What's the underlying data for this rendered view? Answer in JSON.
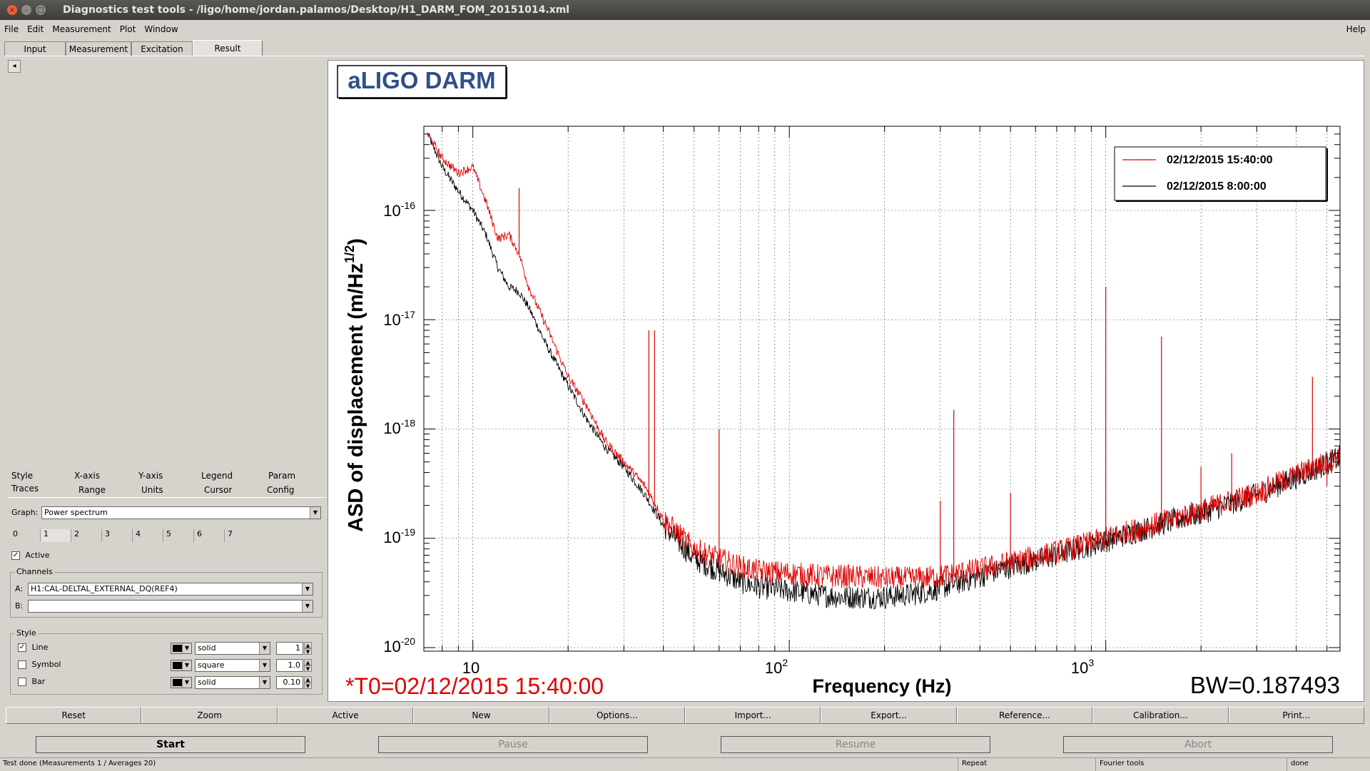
{
  "window": {
    "title": "Diagnostics test tools - /ligo/home/jordan.palamos/Desktop/H1_DARM_FOM_20151014.xml",
    "buttons": {
      "close": "×",
      "minimize": "–",
      "maximize": "□"
    }
  },
  "menu": {
    "file": "File",
    "edit": "Edit",
    "measurement": "Measurement",
    "plot": "Plot",
    "window": "Window",
    "help": "Help"
  },
  "top_tabs": [
    "Input",
    "Measurement",
    "Excitation",
    "Result"
  ],
  "left_arrow": "◂",
  "options": {
    "tabs_row1": [
      "Style",
      "X-axis",
      "Y-axis",
      "Legend",
      "Param"
    ],
    "tabs_row2": [
      "Traces",
      "Range",
      "Units",
      "Cursor",
      "Config"
    ],
    "graph_label": "Graph:",
    "graph_value": "Power spectrum",
    "trace_tabs": [
      "0",
      "1",
      "2",
      "3",
      "4",
      "5",
      "6",
      "7"
    ],
    "active_label": "Active",
    "channels_label": "Channels",
    "channel_a_label": "A:",
    "channel_a_value": "H1:CAL-DELTAL_EXTERNAL_DQ(REF4)",
    "channel_b_label": "B:",
    "channel_b_value": "",
    "style_label": "Style",
    "style_rows": [
      {
        "label": "Line",
        "checked": true,
        "type": "solid",
        "size": "1"
      },
      {
        "label": "Symbol",
        "checked": false,
        "type": "square",
        "size": "1.0"
      },
      {
        "label": "Bar",
        "checked": false,
        "type": "solid",
        "size": "0.10"
      }
    ]
  },
  "plot": {
    "title": "aLIGO DARM",
    "t0": "*T0=02/12/2015 15:40:00",
    "bw": "BW=0.187493",
    "xlabel": "Frequency (Hz)",
    "ylabel": "ASD of displacement (m/Hz",
    "ylabel_sup": "1/2",
    "ylabel_end": ")",
    "legend": [
      {
        "name": "02/12/2015 15:40:00",
        "color": "#dd0000"
      },
      {
        "name": "02/12/2015 8:00:00",
        "color": "#000000"
      }
    ],
    "xtick_labels": [
      {
        "base": "10",
        "exp": ""
      },
      {
        "base": "10",
        "exp": "2"
      },
      {
        "base": "10",
        "exp": "3"
      }
    ],
    "ytick_labels": [
      {
        "base": "10",
        "exp": "-16"
      },
      {
        "base": "10",
        "exp": "-17"
      },
      {
        "base": "10",
        "exp": "-18"
      },
      {
        "base": "10",
        "exp": "-19"
      },
      {
        "base": "10",
        "exp": "-20"
      }
    ]
  },
  "chart_data": {
    "type": "line",
    "title": "aLIGO DARM",
    "xlabel": "Frequency (Hz)",
    "ylabel": "ASD of displacement (m/Hz^1/2)",
    "xscale": "log",
    "yscale": "log",
    "xlim": [
      7,
      5500
    ],
    "ylim": [
      1e-20,
      6e-16
    ],
    "grid": true,
    "legend_position": "top-right",
    "series": [
      {
        "name": "02/12/2015 15:40:00",
        "color": "#dd0000",
        "points": [
          [
            7.2,
            5e-16
          ],
          [
            8,
            3e-16
          ],
          [
            9,
            2.2e-16
          ],
          [
            10,
            2.5e-16
          ],
          [
            11,
            1.2e-16
          ],
          [
            12,
            5.5e-17
          ],
          [
            13,
            6e-17
          ],
          [
            14,
            4e-17
          ],
          [
            15,
            2e-17
          ],
          [
            17,
            9e-18
          ],
          [
            20,
            3e-18
          ],
          [
            23,
            1.6e-18
          ],
          [
            26,
            8e-19
          ],
          [
            30,
            5e-19
          ],
          [
            35,
            3e-19
          ],
          [
            40,
            1.5e-19
          ],
          [
            50,
            8e-20
          ],
          [
            60,
            6.5e-20
          ],
          [
            70,
            5.5e-20
          ],
          [
            80,
            5e-20
          ],
          [
            100,
            4.8e-20
          ],
          [
            130,
            4.5e-20
          ],
          [
            150,
            4.5e-20
          ],
          [
            200,
            4.3e-20
          ],
          [
            250,
            4.3e-20
          ],
          [
            300,
            4.5e-20
          ],
          [
            400,
            5.2e-20
          ],
          [
            500,
            6e-20
          ],
          [
            700,
            7.5e-20
          ],
          [
            1000,
            1e-19
          ],
          [
            1500,
            1.4e-19
          ],
          [
            2000,
            1.8e-19
          ],
          [
            3000,
            2.6e-19
          ],
          [
            4000,
            3.8e-19
          ],
          [
            5000,
            5e-19
          ],
          [
            5500,
            5.8e-19
          ]
        ],
        "peaks": [
          [
            10,
            2.5e-16
          ],
          [
            14,
            1.6e-16
          ],
          [
            36,
            8e-18
          ],
          [
            37.5,
            8e-18
          ],
          [
            60,
            1e-18
          ],
          [
            120,
            4e-20
          ],
          [
            180,
            4e-20
          ],
          [
            300,
            2.2e-19
          ],
          [
            331,
            1.5e-18
          ],
          [
            500,
            2.6e-19
          ],
          [
            1000,
            2e-17
          ],
          [
            1500,
            7e-18
          ],
          [
            2000,
            4.5e-19
          ],
          [
            2500,
            6e-19
          ],
          [
            3600,
            3.3e-19
          ],
          [
            4500,
            3e-18
          ],
          [
            5000,
            3e-19
          ]
        ]
      },
      {
        "name": "02/12/2015 8:00:00",
        "color": "#000000",
        "points": [
          [
            7.2,
            5e-16
          ],
          [
            8,
            2.5e-16
          ],
          [
            9,
            1.5e-16
          ],
          [
            10,
            1e-16
          ],
          [
            11,
            6e-17
          ],
          [
            12,
            3e-17
          ],
          [
            13,
            2e-17
          ],
          [
            14,
            1.8e-17
          ],
          [
            15,
            1.3e-17
          ],
          [
            17,
            6e-18
          ],
          [
            20,
            2.5e-18
          ],
          [
            23,
            1.2e-18
          ],
          [
            26,
            7e-19
          ],
          [
            30,
            4.5e-19
          ],
          [
            35,
            2.5e-19
          ],
          [
            40,
            1.3e-19
          ],
          [
            50,
            6.5e-20
          ],
          [
            60,
            5e-20
          ],
          [
            70,
            4e-20
          ],
          [
            80,
            3.6e-20
          ],
          [
            100,
            3.3e-20
          ],
          [
            130,
            3e-20
          ],
          [
            150,
            2.9e-20
          ],
          [
            200,
            2.9e-20
          ],
          [
            250,
            3.1e-20
          ],
          [
            300,
            3.5e-20
          ],
          [
            400,
            4.5e-20
          ],
          [
            500,
            5.5e-20
          ],
          [
            700,
            7e-20
          ],
          [
            1000,
            9.5e-20
          ],
          [
            1500,
            1.35e-19
          ],
          [
            2000,
            1.7e-19
          ],
          [
            3000,
            2.5e-19
          ],
          [
            4000,
            3.6e-19
          ],
          [
            5000,
            4.8e-19
          ],
          [
            5500,
            5.5e-19
          ]
        ]
      }
    ]
  },
  "buttons_row1": [
    "Reset",
    "Zoom",
    "Active",
    "New",
    "Options...",
    "Import...",
    "Export...",
    "Reference...",
    "Calibration...",
    "Print..."
  ],
  "buttons_row2": [
    {
      "label": "Start",
      "enabled": true
    },
    {
      "label": "Pause",
      "enabled": false
    },
    {
      "label": "Resume",
      "enabled": false
    },
    {
      "label": "Abort",
      "enabled": false
    }
  ],
  "status": {
    "main": "Test done (Measurements 1 / Averages 20)",
    "repeat": "Repeat",
    "tool": "Fourier tools",
    "state": "done"
  }
}
